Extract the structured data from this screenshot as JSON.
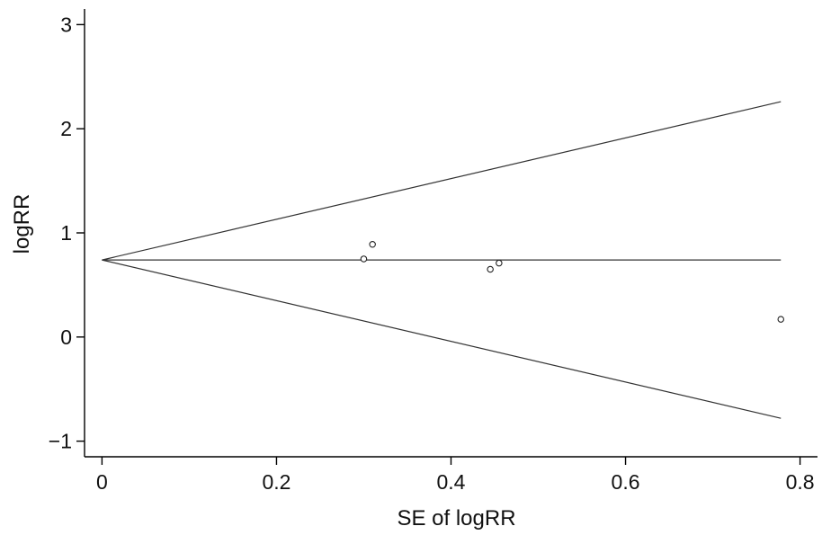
{
  "chart_data": {
    "type": "scatter",
    "title": "",
    "xlabel": "SE of logRR",
    "ylabel": "logRR",
    "xlim": [
      -0.02,
      0.82
    ],
    "ylim": [
      -1.15,
      3.15
    ],
    "x_ticks": [
      0,
      0.2,
      0.4,
      0.6,
      0.8
    ],
    "x_tick_labels": [
      "0",
      "0.2",
      "0.4",
      "0.6",
      "0.8"
    ],
    "y_ticks": [
      -1,
      0,
      1,
      2,
      3
    ],
    "y_tick_labels": [
      "−1",
      "0",
      "1",
      "2",
      "3"
    ],
    "grid": false,
    "series": [
      {
        "points": [
          {
            "x": 0.3,
            "y": 0.75
          },
          {
            "x": 0.31,
            "y": 0.89
          },
          {
            "x": 0.445,
            "y": 0.65
          },
          {
            "x": 0.455,
            "y": 0.71
          },
          {
            "x": 0.778,
            "y": 0.17
          }
        ]
      }
    ],
    "reference_lines": {
      "pooled_estimate": 0.74,
      "se_max": 0.778,
      "upper_limit_at_se_max": 2.26,
      "lower_limit_at_se_max": -0.78
    }
  }
}
